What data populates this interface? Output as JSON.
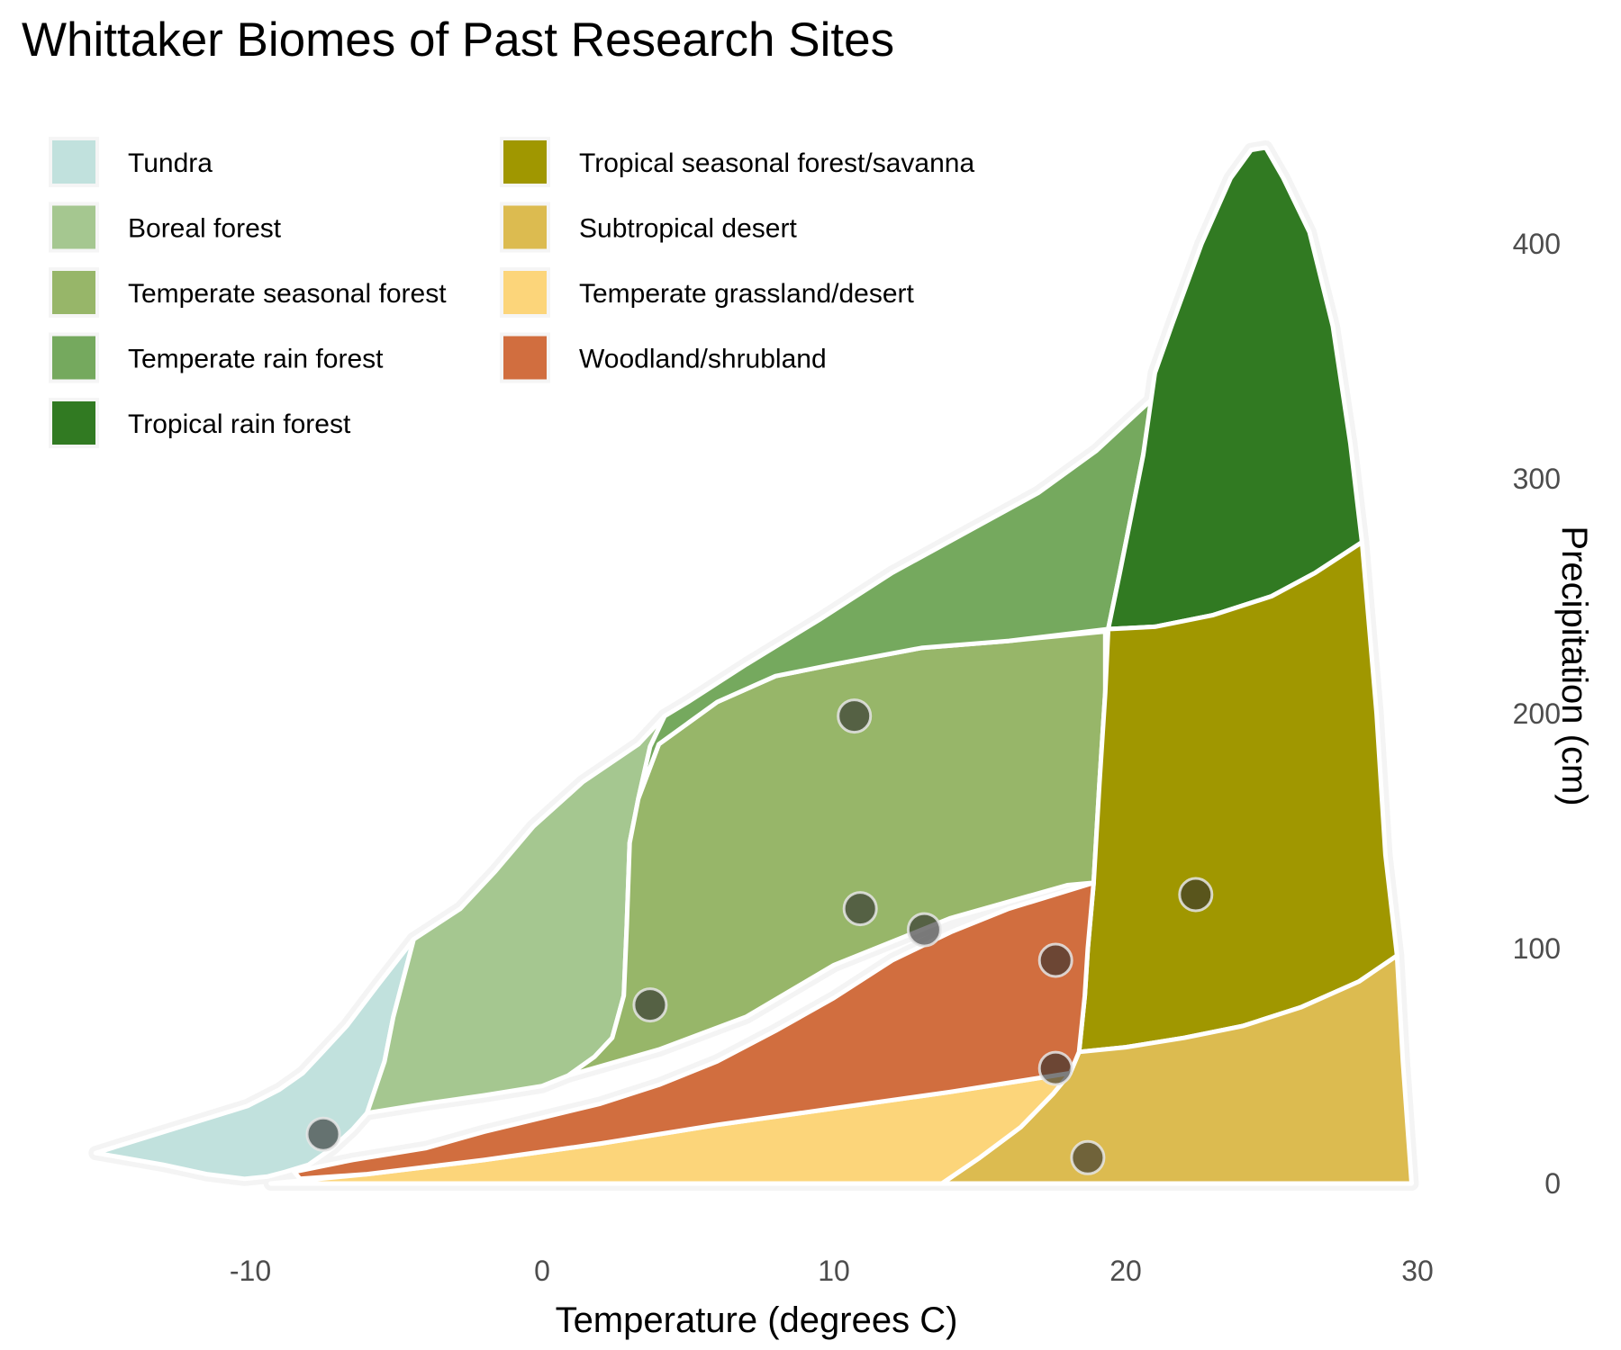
{
  "chart_data": {
    "type": "area",
    "title": "Whittaker Biomes of Past Research Sites",
    "xlabel": "Temperature (degrees C)",
    "ylabel": "Precipitation (cm)",
    "xlim": [
      -15.8,
      30.5
    ],
    "ylim": [
      -5,
      455
    ],
    "x_ticks": [
      "-10",
      "0",
      "10",
      "20",
      "30"
    ],
    "x_tick_values": [
      -10,
      0,
      10,
      20,
      30
    ],
    "y_ticks": [
      "0",
      "100",
      "200",
      "300",
      "400"
    ],
    "y_tick_values": [
      0,
      100,
      200,
      300,
      400
    ],
    "y_axis_position": "right",
    "grid": false,
    "legend_position": "top-left",
    "biomes": [
      {
        "name": "Tundra",
        "color": "#C1E1DD",
        "points": [
          [
            -15.3,
            13
          ],
          [
            -13,
            8
          ],
          [
            -11.5,
            4
          ],
          [
            -10.2,
            2
          ],
          [
            -9.4,
            3
          ],
          [
            -8.8,
            5
          ],
          [
            -8,
            8
          ],
          [
            -7.2,
            15
          ],
          [
            -6.5,
            23
          ],
          [
            -6,
            30
          ],
          [
            -5.4,
            52
          ],
          [
            -5.1,
            71
          ],
          [
            -4.4,
            104
          ],
          [
            -5.6,
            85
          ],
          [
            -6.7,
            67
          ],
          [
            -7.6,
            55
          ],
          [
            -8.2,
            47
          ],
          [
            -9,
            40
          ],
          [
            -10.1,
            33
          ],
          [
            -12.7,
            23
          ]
        ]
      },
      {
        "name": "Boreal forest",
        "color": "#A5C790",
        "points": [
          [
            -6,
            30
          ],
          [
            -4,
            34
          ],
          [
            -2,
            37.5
          ],
          [
            0,
            41.5
          ],
          [
            0.9,
            46
          ],
          [
            1.8,
            54
          ],
          [
            2.4,
            62
          ],
          [
            2.8,
            80
          ],
          [
            2.9,
            110
          ],
          [
            3,
            145
          ],
          [
            3.3,
            164
          ],
          [
            3.7,
            186
          ],
          [
            4.2,
            199
          ],
          [
            3.3,
            187
          ],
          [
            1.4,
            171
          ],
          [
            -0.3,
            152
          ],
          [
            -1.6,
            133
          ],
          [
            -2.8,
            117
          ],
          [
            -4.4,
            104
          ],
          [
            -5.1,
            71
          ],
          [
            -5.4,
            52
          ]
        ]
      },
      {
        "name": "Temperate seasonal forest",
        "color": "#97B669",
        "points": [
          [
            0.9,
            46
          ],
          [
            4,
            57
          ],
          [
            7,
            71
          ],
          [
            10,
            93
          ],
          [
            14,
            113
          ],
          [
            18,
            127
          ],
          [
            18.9,
            128
          ],
          [
            19.1,
            170
          ],
          [
            19.3,
            209
          ],
          [
            19.3,
            235
          ],
          [
            16,
            231
          ],
          [
            13,
            228
          ],
          [
            10,
            221
          ],
          [
            8,
            216
          ],
          [
            6,
            205
          ],
          [
            4,
            187
          ],
          [
            3.3,
            164
          ],
          [
            3,
            145
          ],
          [
            2.9,
            110
          ],
          [
            2.8,
            80
          ],
          [
            2.4,
            62
          ],
          [
            1.8,
            54
          ]
        ]
      },
      {
        "name": "Temperate rain forest",
        "color": "#75A95E",
        "points": [
          [
            4.2,
            199
          ],
          [
            5,
            205
          ],
          [
            7,
            221
          ],
          [
            9.5,
            240
          ],
          [
            12,
            260
          ],
          [
            14.5,
            277
          ],
          [
            17,
            294
          ],
          [
            19,
            312
          ],
          [
            21,
            335
          ],
          [
            20.6,
            310
          ],
          [
            20.2,
            285
          ],
          [
            19.8,
            260
          ],
          [
            19.4,
            236
          ],
          [
            16,
            231
          ],
          [
            13,
            228
          ],
          [
            10,
            221
          ],
          [
            8,
            216
          ],
          [
            6,
            205
          ],
          [
            4,
            187
          ],
          [
            3.3,
            164
          ],
          [
            3.7,
            186
          ]
        ]
      },
      {
        "name": "Tropical rain forest",
        "color": "#317A22",
        "points": [
          [
            19.4,
            236
          ],
          [
            21,
            237
          ],
          [
            23,
            242
          ],
          [
            25,
            250
          ],
          [
            26.5,
            260
          ],
          [
            28.1,
            273
          ],
          [
            27.7,
            315
          ],
          [
            27.1,
            365
          ],
          [
            26.3,
            405
          ],
          [
            25.4,
            428
          ],
          [
            24.8,
            441
          ],
          [
            24.3,
            440
          ],
          [
            23.6,
            428
          ],
          [
            22.6,
            400
          ],
          [
            21.6,
            366
          ],
          [
            21,
            345
          ],
          [
            20.6,
            310
          ],
          [
            20.2,
            285
          ],
          [
            19.8,
            260
          ]
        ]
      },
      {
        "name": "Tropical seasonal forest/savanna",
        "color": "#A09700",
        "points": [
          [
            18.4,
            56
          ],
          [
            20,
            58
          ],
          [
            22,
            62
          ],
          [
            24,
            67
          ],
          [
            26,
            75
          ],
          [
            28,
            86
          ],
          [
            29.3,
            97
          ],
          [
            28.9,
            140
          ],
          [
            28.6,
            200
          ],
          [
            28.1,
            273
          ],
          [
            26.5,
            260
          ],
          [
            25,
            250
          ],
          [
            23,
            242
          ],
          [
            21,
            237
          ],
          [
            19.4,
            236
          ],
          [
            19.3,
            209
          ],
          [
            19.1,
            170
          ],
          [
            18.9,
            128
          ],
          [
            18.7,
            100
          ],
          [
            18.6,
            80
          ]
        ]
      },
      {
        "name": "Subtropical desert",
        "color": "#DCBB50",
        "points": [
          [
            13.7,
            0
          ],
          [
            15,
            11
          ],
          [
            16.4,
            24
          ],
          [
            17.5,
            38
          ],
          [
            18.1,
            47
          ],
          [
            18.4,
            56
          ],
          [
            20,
            58
          ],
          [
            22,
            62
          ],
          [
            24,
            67
          ],
          [
            26,
            75
          ],
          [
            28,
            86
          ],
          [
            29.3,
            97
          ],
          [
            29.5,
            52
          ],
          [
            29.8,
            0
          ]
        ]
      },
      {
        "name": "Temperate grassland/desert",
        "color": "#FCD57A",
        "points": [
          [
            -9.3,
            0
          ],
          [
            -6,
            4
          ],
          [
            -2,
            10
          ],
          [
            2,
            17
          ],
          [
            6,
            25
          ],
          [
            10,
            32
          ],
          [
            14,
            39
          ],
          [
            18.1,
            47
          ],
          [
            17.5,
            38
          ],
          [
            16.4,
            24
          ],
          [
            15,
            11
          ],
          [
            13.7,
            0
          ]
        ]
      },
      {
        "name": "Woodland/shrubland",
        "color": "#D16E3F",
        "points": [
          [
            -8.5,
            5
          ],
          [
            -6.5,
            10
          ],
          [
            -4,
            15
          ],
          [
            -2,
            22
          ],
          [
            0,
            28
          ],
          [
            2,
            34
          ],
          [
            4,
            42
          ],
          [
            6,
            52
          ],
          [
            8,
            65
          ],
          [
            10,
            79
          ],
          [
            12,
            95
          ],
          [
            14,
            107
          ],
          [
            16,
            117
          ],
          [
            18.9,
            128
          ],
          [
            18.7,
            100
          ],
          [
            18.6,
            80
          ],
          [
            18.4,
            56
          ],
          [
            18.1,
            47
          ],
          [
            14,
            39
          ],
          [
            10,
            32
          ],
          [
            6,
            25
          ],
          [
            2,
            17
          ],
          [
            -2,
            10
          ],
          [
            -6,
            4
          ],
          [
            -8.3,
            2
          ]
        ]
      }
    ],
    "legend": [
      "Tundra",
      "Boreal forest",
      "Temperate seasonal forest",
      "Temperate rain forest",
      "Tropical rain forest",
      "Tropical seasonal forest/savanna",
      "Subtropical desert",
      "Temperate grassland/desert",
      "Woodland/shrubland"
    ],
    "sites": [
      {
        "x": -7.5,
        "y": 21
      },
      {
        "x": 3.7,
        "y": 76
      },
      {
        "x": 10.7,
        "y": 199
      },
      {
        "x": 10.9,
        "y": 117
      },
      {
        "x": 13.1,
        "y": 108
      },
      {
        "x": 17.6,
        "y": 95
      },
      {
        "x": 17.6,
        "y": 49
      },
      {
        "x": 18.7,
        "y": 11
      },
      {
        "x": 22.4,
        "y": 123
      }
    ]
  }
}
